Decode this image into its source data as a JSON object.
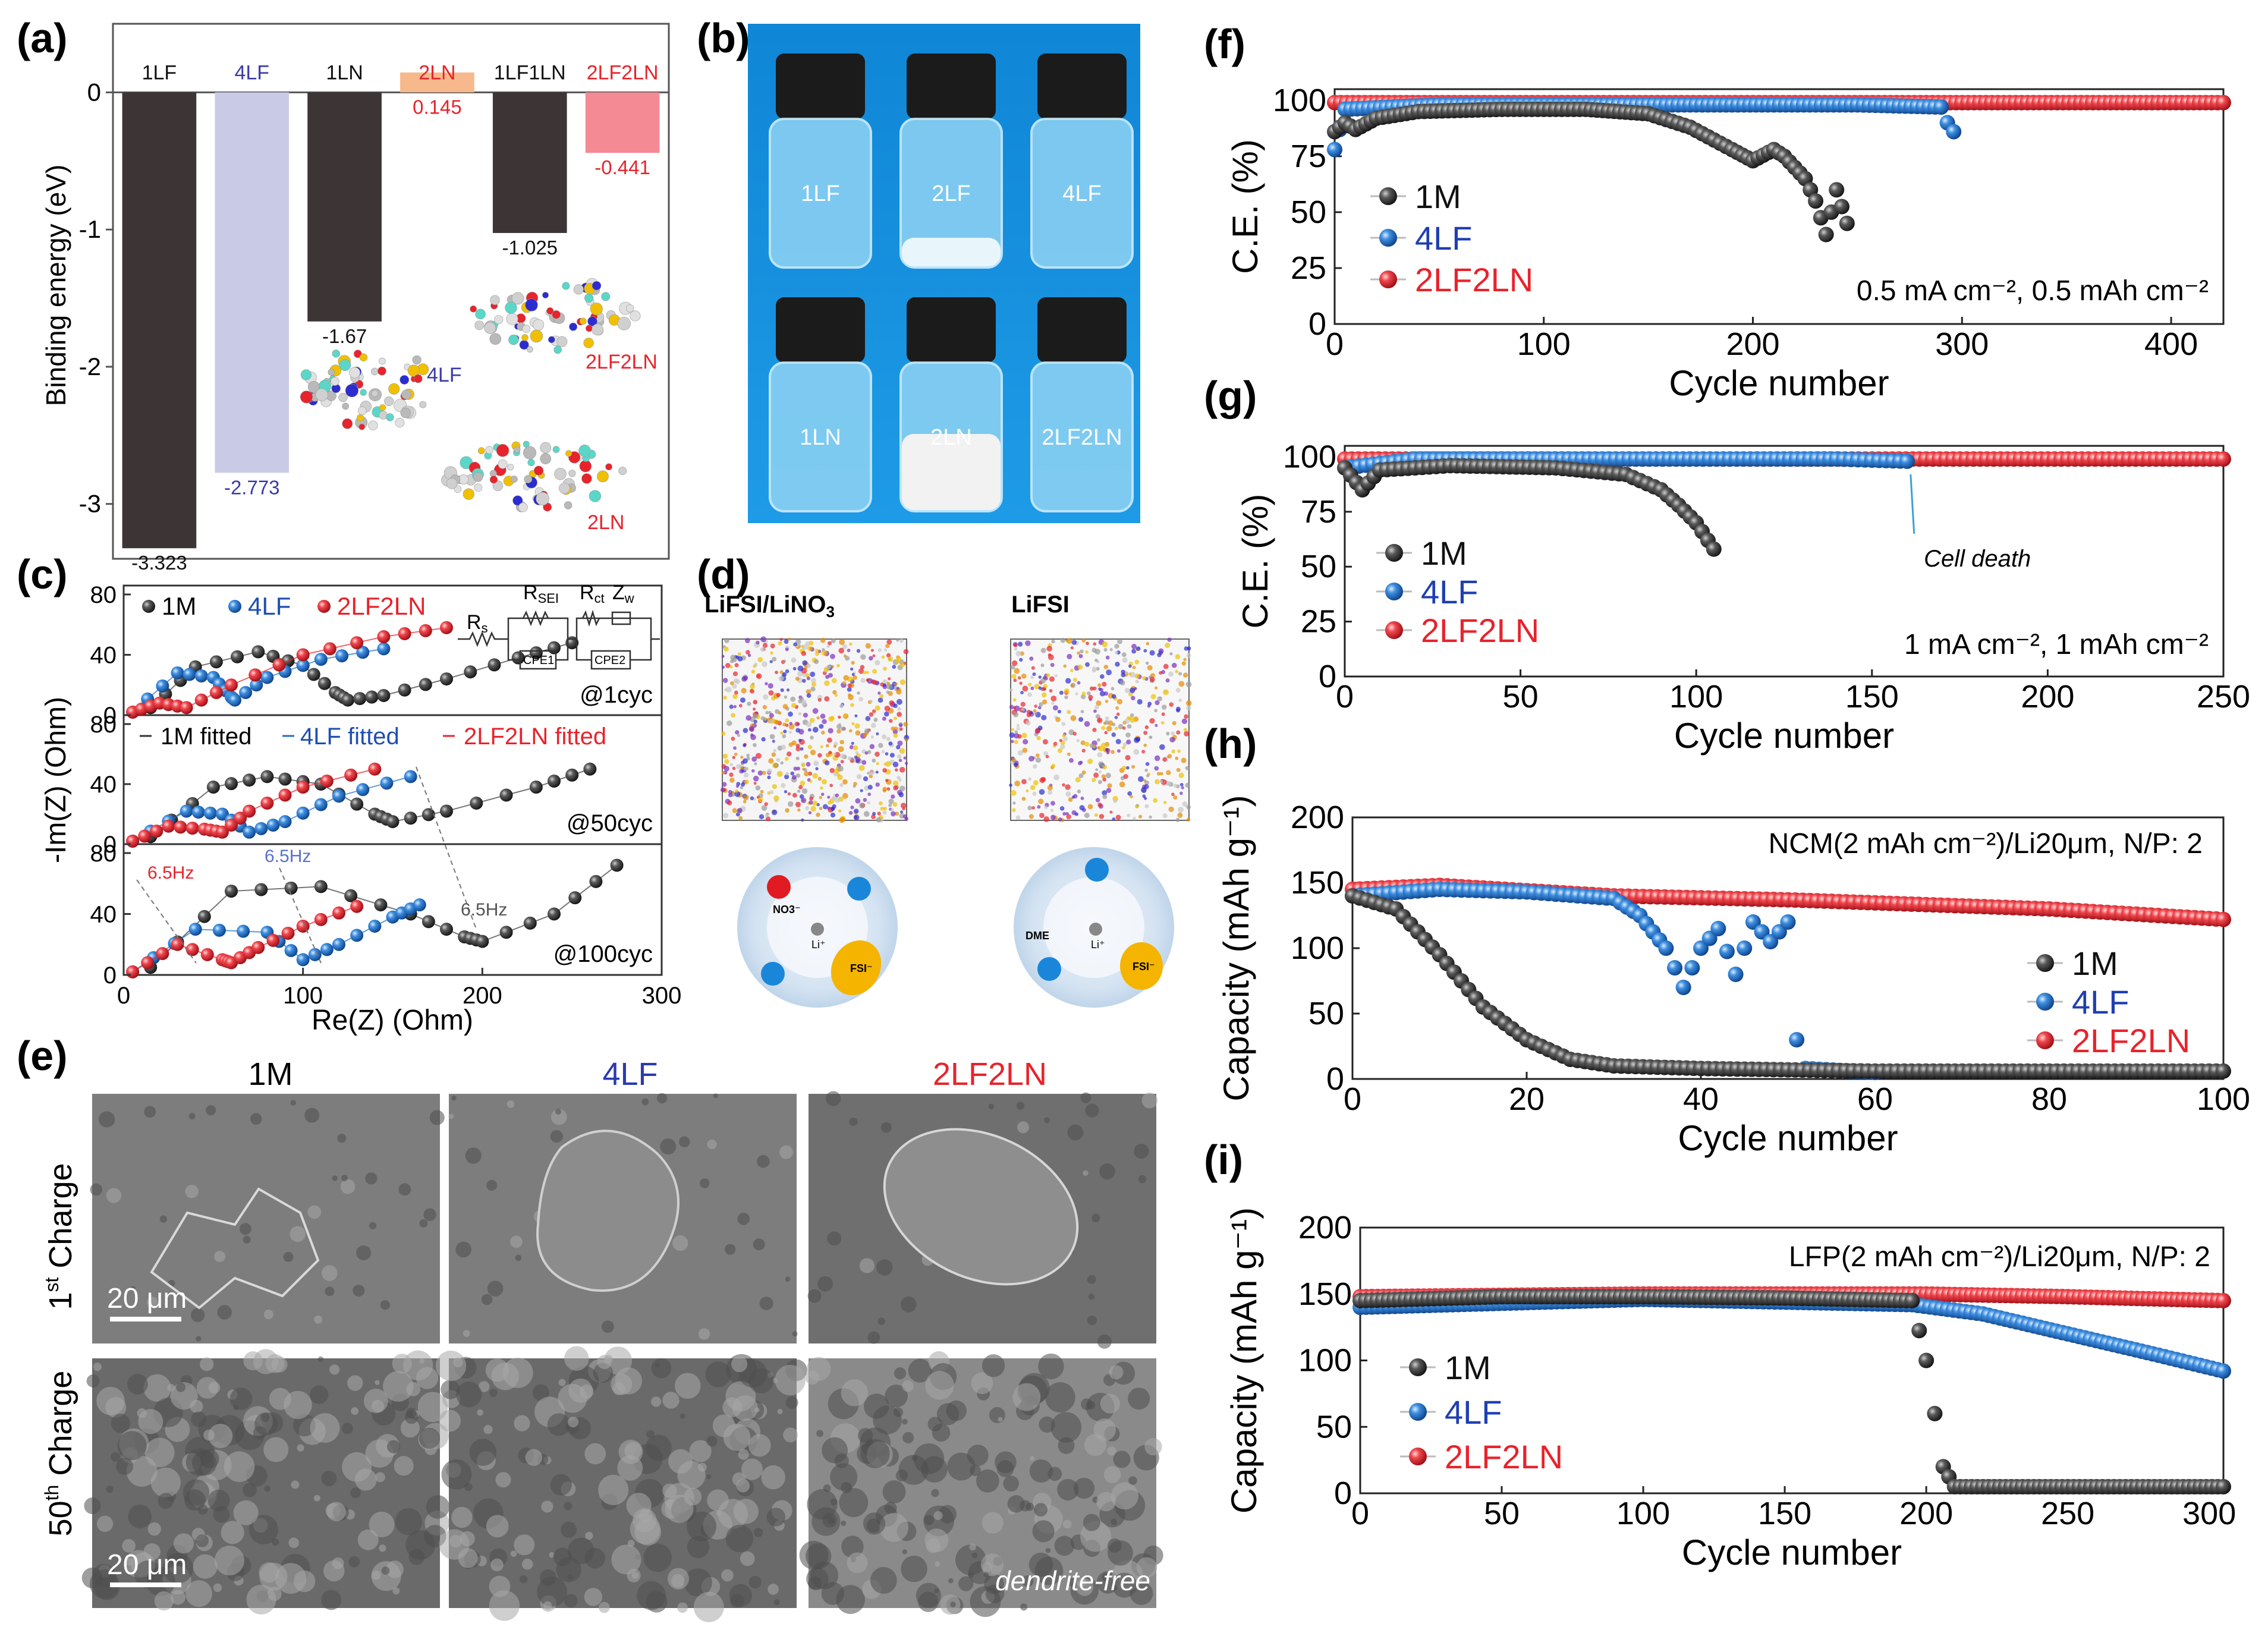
{
  "colors": {
    "black_series": "#3a3a3a",
    "blue_series": "#1f6fc4",
    "red_series": "#e8232c",
    "bar_dark": "#3d3535",
    "bar_light": "#c9cbe6",
    "bar_orange": "#f7b98b",
    "bar_pink": "#f48a93"
  },
  "panel_labels": {
    "a": "(a)",
    "b": "(b)",
    "c": "(c)",
    "d": "(d)",
    "e": "(e)",
    "f": "(f)",
    "g": "(g)",
    "h": "(h)",
    "i": "(i)"
  },
  "panel_b": {
    "vials_top": [
      "1LF",
      "2LF",
      "4LF"
    ],
    "vials_bottom": [
      "1LN",
      "2LN",
      "2LF2LN"
    ]
  },
  "panel_c": {
    "legend": [
      "1M",
      "4LF",
      "2LF2LN"
    ],
    "legend_fitted": [
      "1M fitted",
      "4LF fitted",
      "2LF2LN fitted"
    ],
    "circuit": {
      "rs": "R",
      "rs_sub": "s",
      "rsei": "R",
      "rsei_sub": "SEI",
      "rct": "R",
      "rct_sub": "ct",
      "zw": "Z",
      "zw_sub": "w",
      "cpe1": "CPE1",
      "cpe2": "CPE2"
    },
    "sub_labels": [
      "@1cyc",
      "@50cyc",
      "@100cyc"
    ],
    "freq_labels": [
      "6.5Hz",
      "6.5Hz",
      "6.5Hz"
    ],
    "xlabel": "Re(Z) (Ohm)",
    "ylabel": "-Im(Z) (Ohm)",
    "xticks": [
      "0",
      "100",
      "200",
      "300"
    ],
    "yticks": [
      "0",
      "40",
      "80"
    ]
  },
  "panel_d": {
    "left_title": "LiFSI/LiNO",
    "left_sub": "3",
    "right_title": "LiFSI",
    "left_circle": [
      "NO3⁻",
      "Li⁺",
      "FSI⁻"
    ],
    "right_circle": [
      "DME",
      "Li⁺",
      "FSI⁻"
    ]
  },
  "panel_e": {
    "cols": [
      "1M",
      "4LF",
      "2LF2LN"
    ],
    "row1_pre": "1",
    "row1_sup": "st",
    "row1_post": " Charge",
    "row2_pre": "50",
    "row2_sup": "th",
    "row2_post": " Charge",
    "scale": "20 μm",
    "note": "dendrite-free"
  },
  "chart_data": [
    {
      "id": "a",
      "type": "bar",
      "categories": [
        "1LF",
        "4LF",
        "1LN",
        "2LN",
        "1LF1LN",
        "2LF2LN"
      ],
      "values": [
        -3.323,
        -2.773,
        -1.67,
        0.145,
        -1.025,
        -0.441
      ],
      "value_labels": [
        "-3.323",
        "-2.773",
        "-1.67",
        "0.145",
        "-1.025",
        "-0.441"
      ],
      "ylabel": "Binding energy (eV)",
      "ylim": [
        -3.4,
        0.5
      ],
      "yticks": [
        "0",
        "-1",
        "-2",
        "-3"
      ],
      "molecule_labels": [
        "4LF",
        "2LF2LN",
        "2LN"
      ]
    },
    {
      "id": "c",
      "type": "scatter",
      "xlim": [
        0,
        300
      ],
      "ylim": [
        0,
        80
      ],
      "series": [
        {
          "name": "1M",
          "subplot": "@1cyc",
          "points": [
            [
              15,
              5
            ],
            [
              40,
              32
            ],
            [
              75,
              42
            ],
            [
              100,
              33
            ],
            [
              118,
              15
            ],
            [
              125,
              10
            ],
            [
              145,
              13
            ],
            [
              180,
              24
            ],
            [
              220,
              38
            ],
            [
              250,
              48
            ]
          ]
        },
        {
          "name": "4LF",
          "subplot": "@1cyc",
          "points": [
            [
              5,
              2
            ],
            [
              30,
              28
            ],
            [
              50,
              25
            ],
            [
              60,
              12
            ],
            [
              62,
              10
            ],
            [
              80,
              25
            ],
            [
              110,
              37
            ],
            [
              145,
              44
            ]
          ]
        },
        {
          "name": "2LF2LN",
          "subplot": "@1cyc",
          "points": [
            [
              5,
              2
            ],
            [
              20,
              8
            ],
            [
              35,
              5
            ],
            [
              60,
              20
            ],
            [
              100,
              40
            ],
            [
              145,
              52
            ],
            [
              180,
              58
            ]
          ]
        },
        {
          "name": "1M",
          "subplot": "@50cyc",
          "points": [
            [
              15,
              5
            ],
            [
              50,
              38
            ],
            [
              80,
              45
            ],
            [
              110,
              40
            ],
            [
              140,
              20
            ],
            [
              150,
              15
            ],
            [
              180,
              22
            ],
            [
              230,
              38
            ],
            [
              260,
              50
            ]
          ]
        },
        {
          "name": "4LF",
          "subplot": "@50cyc",
          "points": [
            [
              5,
              2
            ],
            [
              35,
              22
            ],
            [
              55,
              20
            ],
            [
              70,
              8
            ],
            [
              90,
              15
            ],
            [
              120,
              32
            ],
            [
              160,
              45
            ]
          ]
        },
        {
          "name": "2LF2LN",
          "subplot": "@50cyc",
          "points": [
            [
              5,
              2
            ],
            [
              25,
              12
            ],
            [
              45,
              10
            ],
            [
              55,
              8
            ],
            [
              70,
              22
            ],
            [
              100,
              38
            ],
            [
              140,
              50
            ]
          ]
        },
        {
          "name": "1M",
          "subplot": "@100cyc",
          "points": [
            [
              15,
              5
            ],
            [
              60,
              55
            ],
            [
              110,
              58
            ],
            [
              160,
              40
            ],
            [
              190,
              25
            ],
            [
              200,
              22
            ],
            [
              240,
              40
            ],
            [
              275,
              72
            ]
          ]
        },
        {
          "name": "4LF",
          "subplot": "@100cyc",
          "points": [
            [
              5,
              2
            ],
            [
              40,
              30
            ],
            [
              80,
              28
            ],
            [
              100,
              10
            ],
            [
              120,
              20
            ],
            [
              150,
              38
            ],
            [
              165,
              46
            ]
          ]
        },
        {
          "name": "2LF2LN",
          "subplot": "@100cyc",
          "points": [
            [
              5,
              2
            ],
            [
              30,
              20
            ],
            [
              55,
              10
            ],
            [
              60,
              8
            ],
            [
              75,
              18
            ],
            [
              100,
              32
            ],
            [
              130,
              45
            ]
          ]
        }
      ]
    },
    {
      "id": "f",
      "type": "scatter",
      "xlabel": "Cycle number",
      "ylabel": "C.E. (%)",
      "xlim": [
        0,
        425
      ],
      "ylim": [
        0,
        105
      ],
      "xticks": [
        "0",
        "100",
        "200",
        "300",
        "400"
      ],
      "yticks": [
        "0",
        "25",
        "50",
        "75",
        "100"
      ],
      "annotation": "0.5 mA cm⁻², 0.5 mAh cm⁻²",
      "series": [
        {
          "name": "1M",
          "points": [
            [
              0,
              86
            ],
            [
              5,
              90
            ],
            [
              10,
              87
            ],
            [
              20,
              92
            ],
            [
              40,
              95
            ],
            [
              80,
              96
            ],
            [
              120,
              96
            ],
            [
              150,
              94
            ],
            [
              170,
              88
            ],
            [
              190,
              78
            ],
            [
              200,
              73
            ],
            [
              210,
              78
            ],
            [
              215,
              75
            ],
            [
              220,
              70
            ],
            [
              225,
              65
            ],
            [
              230,
              55
            ],
            [
              235,
              40
            ],
            [
              240,
              60
            ],
            [
              245,
              45
            ]
          ]
        },
        {
          "name": "4LF",
          "points": [
            [
              0,
              78
            ],
            [
              5,
              96
            ],
            [
              50,
              98
            ],
            [
              150,
              98
            ],
            [
              250,
              98
            ],
            [
              290,
              97
            ],
            [
              293,
              90
            ],
            [
              296,
              86
            ]
          ]
        },
        {
          "name": "2LF2LN",
          "points": [
            [
              0,
              99
            ],
            [
              100,
              99
            ],
            [
              200,
              99
            ],
            [
              300,
              99
            ],
            [
              425,
              99
            ]
          ]
        }
      ]
    },
    {
      "id": "g",
      "type": "scatter",
      "xlabel": "Cycle number",
      "ylabel": "C.E. (%)",
      "xlim": [
        0,
        250
      ],
      "ylim": [
        0,
        105
      ],
      "xticks": [
        "0",
        "50",
        "100",
        "150",
        "200",
        "250"
      ],
      "yticks": [
        "0",
        "25",
        "50",
        "75",
        "100"
      ],
      "annotation": "1 mA cm⁻², 1 mAh cm⁻²",
      "callout": "Cell death",
      "series": [
        {
          "name": "1M",
          "points": [
            [
              0,
              95
            ],
            [
              5,
              85
            ],
            [
              10,
              94
            ],
            [
              30,
              96
            ],
            [
              60,
              95
            ],
            [
              80,
              92
            ],
            [
              90,
              85
            ],
            [
              95,
              78
            ],
            [
              100,
              70
            ],
            [
              105,
              58
            ]
          ]
        },
        {
          "name": "4LF",
          "points": [
            [
              0,
              95
            ],
            [
              20,
              99
            ],
            [
              60,
              99
            ],
            [
              100,
              99
            ],
            [
              140,
              99
            ],
            [
              160,
              98
            ]
          ]
        },
        {
          "name": "2LF2LN",
          "points": [
            [
              0,
              99
            ],
            [
              100,
              99
            ],
            [
              200,
              99
            ],
            [
              250,
              99
            ]
          ]
        }
      ]
    },
    {
      "id": "h",
      "type": "scatter",
      "xlabel": "Cycle number",
      "ylabel": "Capacity (mAh g⁻¹)",
      "xlim": [
        0,
        100
      ],
      "ylim": [
        0,
        200
      ],
      "xticks": [
        "0",
        "20",
        "40",
        "60",
        "80",
        "100"
      ],
      "yticks": [
        "0",
        "50",
        "100",
        "150",
        "200"
      ],
      "annotation": "NCM(2 mAh cm⁻²)/Li20μm, N/P: 2",
      "series": [
        {
          "name": "1M",
          "points": [
            [
              0,
              140
            ],
            [
              5,
              130
            ],
            [
              10,
              95
            ],
            [
              15,
              55
            ],
            [
              20,
              30
            ],
            [
              25,
              15
            ],
            [
              30,
              10
            ],
            [
              40,
              8
            ],
            [
              60,
              6
            ],
            [
              80,
              6
            ],
            [
              100,
              6
            ]
          ]
        },
        {
          "name": "4LF",
          "points": [
            [
              0,
              140
            ],
            [
              10,
              145
            ],
            [
              20,
              143
            ],
            [
              30,
              138
            ],
            [
              33,
              125
            ],
            [
              36,
              100
            ],
            [
              38,
              70
            ],
            [
              40,
              100
            ],
            [
              42,
              115
            ],
            [
              44,
              80
            ],
            [
              46,
              120
            ],
            [
              48,
              105
            ],
            [
              50,
              120
            ],
            [
              51,
              30
            ],
            [
              52,
              8
            ],
            [
              60,
              5
            ]
          ]
        },
        {
          "name": "2LF2LN",
          "points": [
            [
              0,
              145
            ],
            [
              10,
              148
            ],
            [
              30,
              140
            ],
            [
              50,
              137
            ],
            [
              80,
              130
            ],
            [
              100,
              122
            ]
          ]
        }
      ]
    },
    {
      "id": "i",
      "type": "scatter",
      "xlabel": "Cycle number",
      "ylabel": "Capacity (mAh g⁻¹)",
      "xlim": [
        0,
        305
      ],
      "ylim": [
        0,
        200
      ],
      "xticks": [
        "0",
        "50",
        "100",
        "150",
        "200",
        "250",
        "300"
      ],
      "yticks": [
        "0",
        "50",
        "100",
        "150",
        "200"
      ],
      "annotation": "LFP(2 mAh cm⁻²)/Li20μm, N/P: 2",
      "series": [
        {
          "name": "1M",
          "points": [
            [
              0,
              145
            ],
            [
              50,
              148
            ],
            [
              100,
              148
            ],
            [
              150,
              147
            ],
            [
              195,
              145
            ],
            [
              200,
              100
            ],
            [
              203,
              60
            ],
            [
              206,
              20
            ],
            [
              210,
              5
            ],
            [
              250,
              5
            ],
            [
              305,
              5
            ]
          ]
        },
        {
          "name": "4LF",
          "points": [
            [
              0,
              140
            ],
            [
              100,
              146
            ],
            [
              195,
              142
            ],
            [
              220,
              135
            ],
            [
              250,
              120
            ],
            [
              280,
              105
            ],
            [
              305,
              92
            ]
          ]
        },
        {
          "name": "2LF2LN",
          "points": [
            [
              0,
              148
            ],
            [
              100,
              150
            ],
            [
              200,
              150
            ],
            [
              250,
              148
            ],
            [
              305,
              145
            ]
          ]
        }
      ]
    }
  ]
}
